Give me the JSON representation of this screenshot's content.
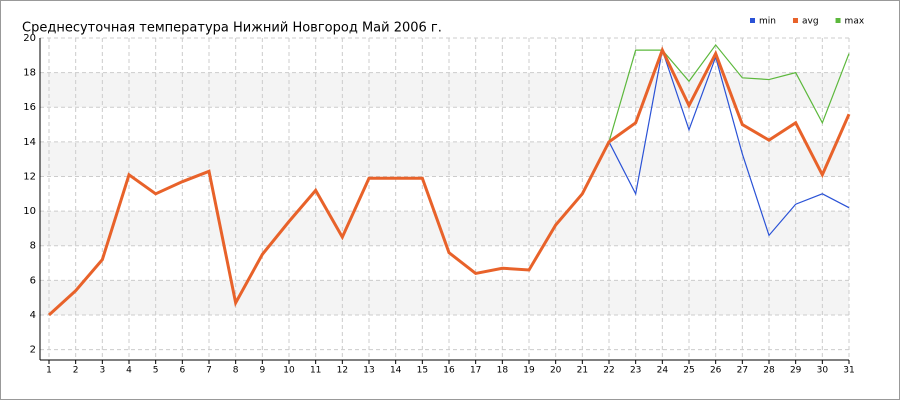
{
  "chart_data": {
    "type": "line",
    "title": "Среднесуточная температура Нижний Новгород  Май 2006 г.",
    "x": [
      1,
      2,
      3,
      4,
      5,
      6,
      7,
      8,
      9,
      10,
      11,
      12,
      13,
      14,
      15,
      16,
      17,
      18,
      19,
      20,
      21,
      22,
      23,
      24,
      25,
      26,
      27,
      28,
      29,
      30,
      31
    ],
    "xlim": [
      1,
      31
    ],
    "ylim": [
      1.4,
      20
    ],
    "yticks": [
      2,
      4,
      6,
      8,
      10,
      12,
      14,
      16,
      18,
      20
    ],
    "grid": true,
    "legend": "top-right",
    "series": [
      {
        "name": "min",
        "color": "#2a52d6",
        "values": [
          4.0,
          5.4,
          7.2,
          12.1,
          11.0,
          11.7,
          12.3,
          4.7,
          7.5,
          9.4,
          11.2,
          8.5,
          11.9,
          11.9,
          11.9,
          7.6,
          6.4,
          6.7,
          6.6,
          9.2,
          11.0,
          14.0,
          11.0,
          19.3,
          14.7,
          18.9,
          13.3,
          8.6,
          10.4,
          11.0,
          10.2
        ]
      },
      {
        "name": "avg",
        "color": "#e8622a",
        "values": [
          4.0,
          5.4,
          7.2,
          12.1,
          11.0,
          11.7,
          12.3,
          4.7,
          7.5,
          9.4,
          11.2,
          8.5,
          11.9,
          11.9,
          11.9,
          7.6,
          6.4,
          6.7,
          6.6,
          9.2,
          11.0,
          14.0,
          15.1,
          19.3,
          16.1,
          19.1,
          15.0,
          14.1,
          15.1,
          12.1,
          15.6
        ]
      },
      {
        "name": "max",
        "color": "#5cb83c",
        "values": [
          4.0,
          5.4,
          7.2,
          12.1,
          11.0,
          11.7,
          12.3,
          4.7,
          7.5,
          9.4,
          11.2,
          8.5,
          11.9,
          11.9,
          11.9,
          7.6,
          6.4,
          6.7,
          6.6,
          9.2,
          11.0,
          14.0,
          19.3,
          19.3,
          17.5,
          19.6,
          17.7,
          17.6,
          18.0,
          15.1,
          19.1
        ]
      }
    ]
  }
}
